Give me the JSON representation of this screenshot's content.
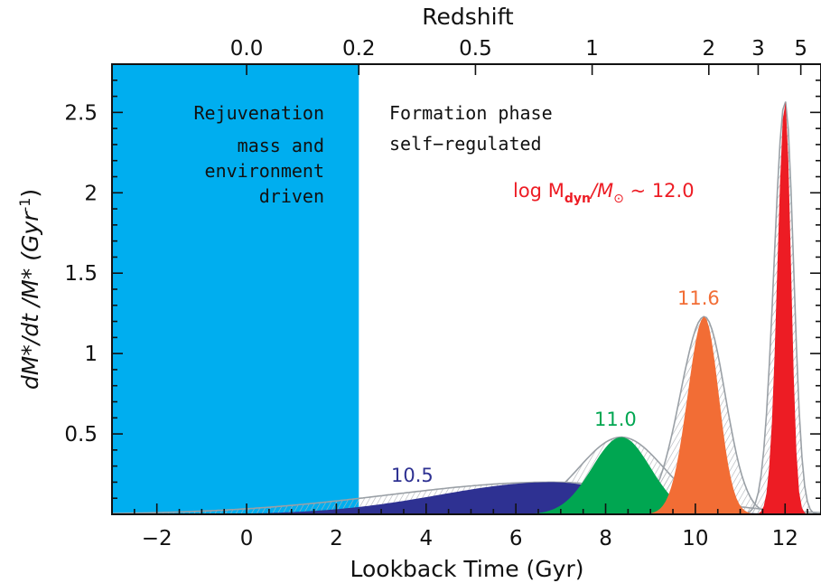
{
  "chart_data": {
    "type": "area",
    "xlabel": "Lookback Time (Gyr)",
    "ylabel": "dM*/dt /M* (Gyr",
    "ylabel_exp": "-1",
    "ylabel_close": ")",
    "top_axis_label": "Redshift",
    "xlim": [
      -3,
      12.8
    ],
    "ylim": [
      0,
      2.8
    ],
    "x_ticks": [
      -2,
      0,
      2,
      4,
      6,
      8,
      10,
      12
    ],
    "x_tick_labels": [
      "−2",
      "0",
      "2",
      "4",
      "6",
      "8",
      "10",
      "12"
    ],
    "y_ticks": [
      0.5,
      1,
      1.5,
      2,
      2.5
    ],
    "y_tick_labels": [
      "0.5",
      "1",
      "1.5",
      "2",
      "2.5"
    ],
    "top_ticks": [
      {
        "label": "0.0",
        "lookback": 0.0
      },
      {
        "label": "0.2",
        "lookback": 2.5
      },
      {
        "label": "0.5",
        "lookback": 5.1
      },
      {
        "label": "1",
        "lookback": 7.7
      },
      {
        "label": "2",
        "lookback": 10.3
      },
      {
        "label": "3",
        "lookback": 11.4
      },
      {
        "label": "5",
        "lookback": 12.35
      }
    ],
    "regions": [
      {
        "name": "Rejuvenation",
        "x_from": -3,
        "x_to": 2.5,
        "color": "#00aeef",
        "lines": [
          "Rejuvenation",
          "mass and",
          "environment",
          "driven"
        ]
      },
      {
        "name": "Formation phase",
        "x_from": 2.5,
        "x_to": 12.8,
        "lines": [
          "Formation phase",
          "self−regulated"
        ]
      }
    ],
    "series": [
      {
        "name": "10.5",
        "color": "#2e3192",
        "peak_x": 6.8,
        "peak_y": 0.2,
        "sigma_left": 2.5,
        "sigma_right": 1.7
      },
      {
        "name": "11.0",
        "color": "#00a651",
        "peak_x": 8.35,
        "peak_y": 0.48,
        "sigma_left": 0.65,
        "sigma_right": 0.65
      },
      {
        "name": "11.6",
        "color": "#f26d35",
        "peak_x": 10.2,
        "peak_y": 1.23,
        "sigma_left": 0.37,
        "sigma_right": 0.32
      },
      {
        "name": "12.0",
        "color": "#ed1c24",
        "peak_x": 12.0,
        "peak_y": 2.57,
        "sigma_left": 0.17,
        "sigma_right": 0.13
      }
    ],
    "mass_label": {
      "prefix": "log M",
      "sub": "dyn",
      "mid": "/M",
      "sun": "⊙",
      "suffix": " ~ 12.0",
      "color": "#ed1c24"
    }
  }
}
